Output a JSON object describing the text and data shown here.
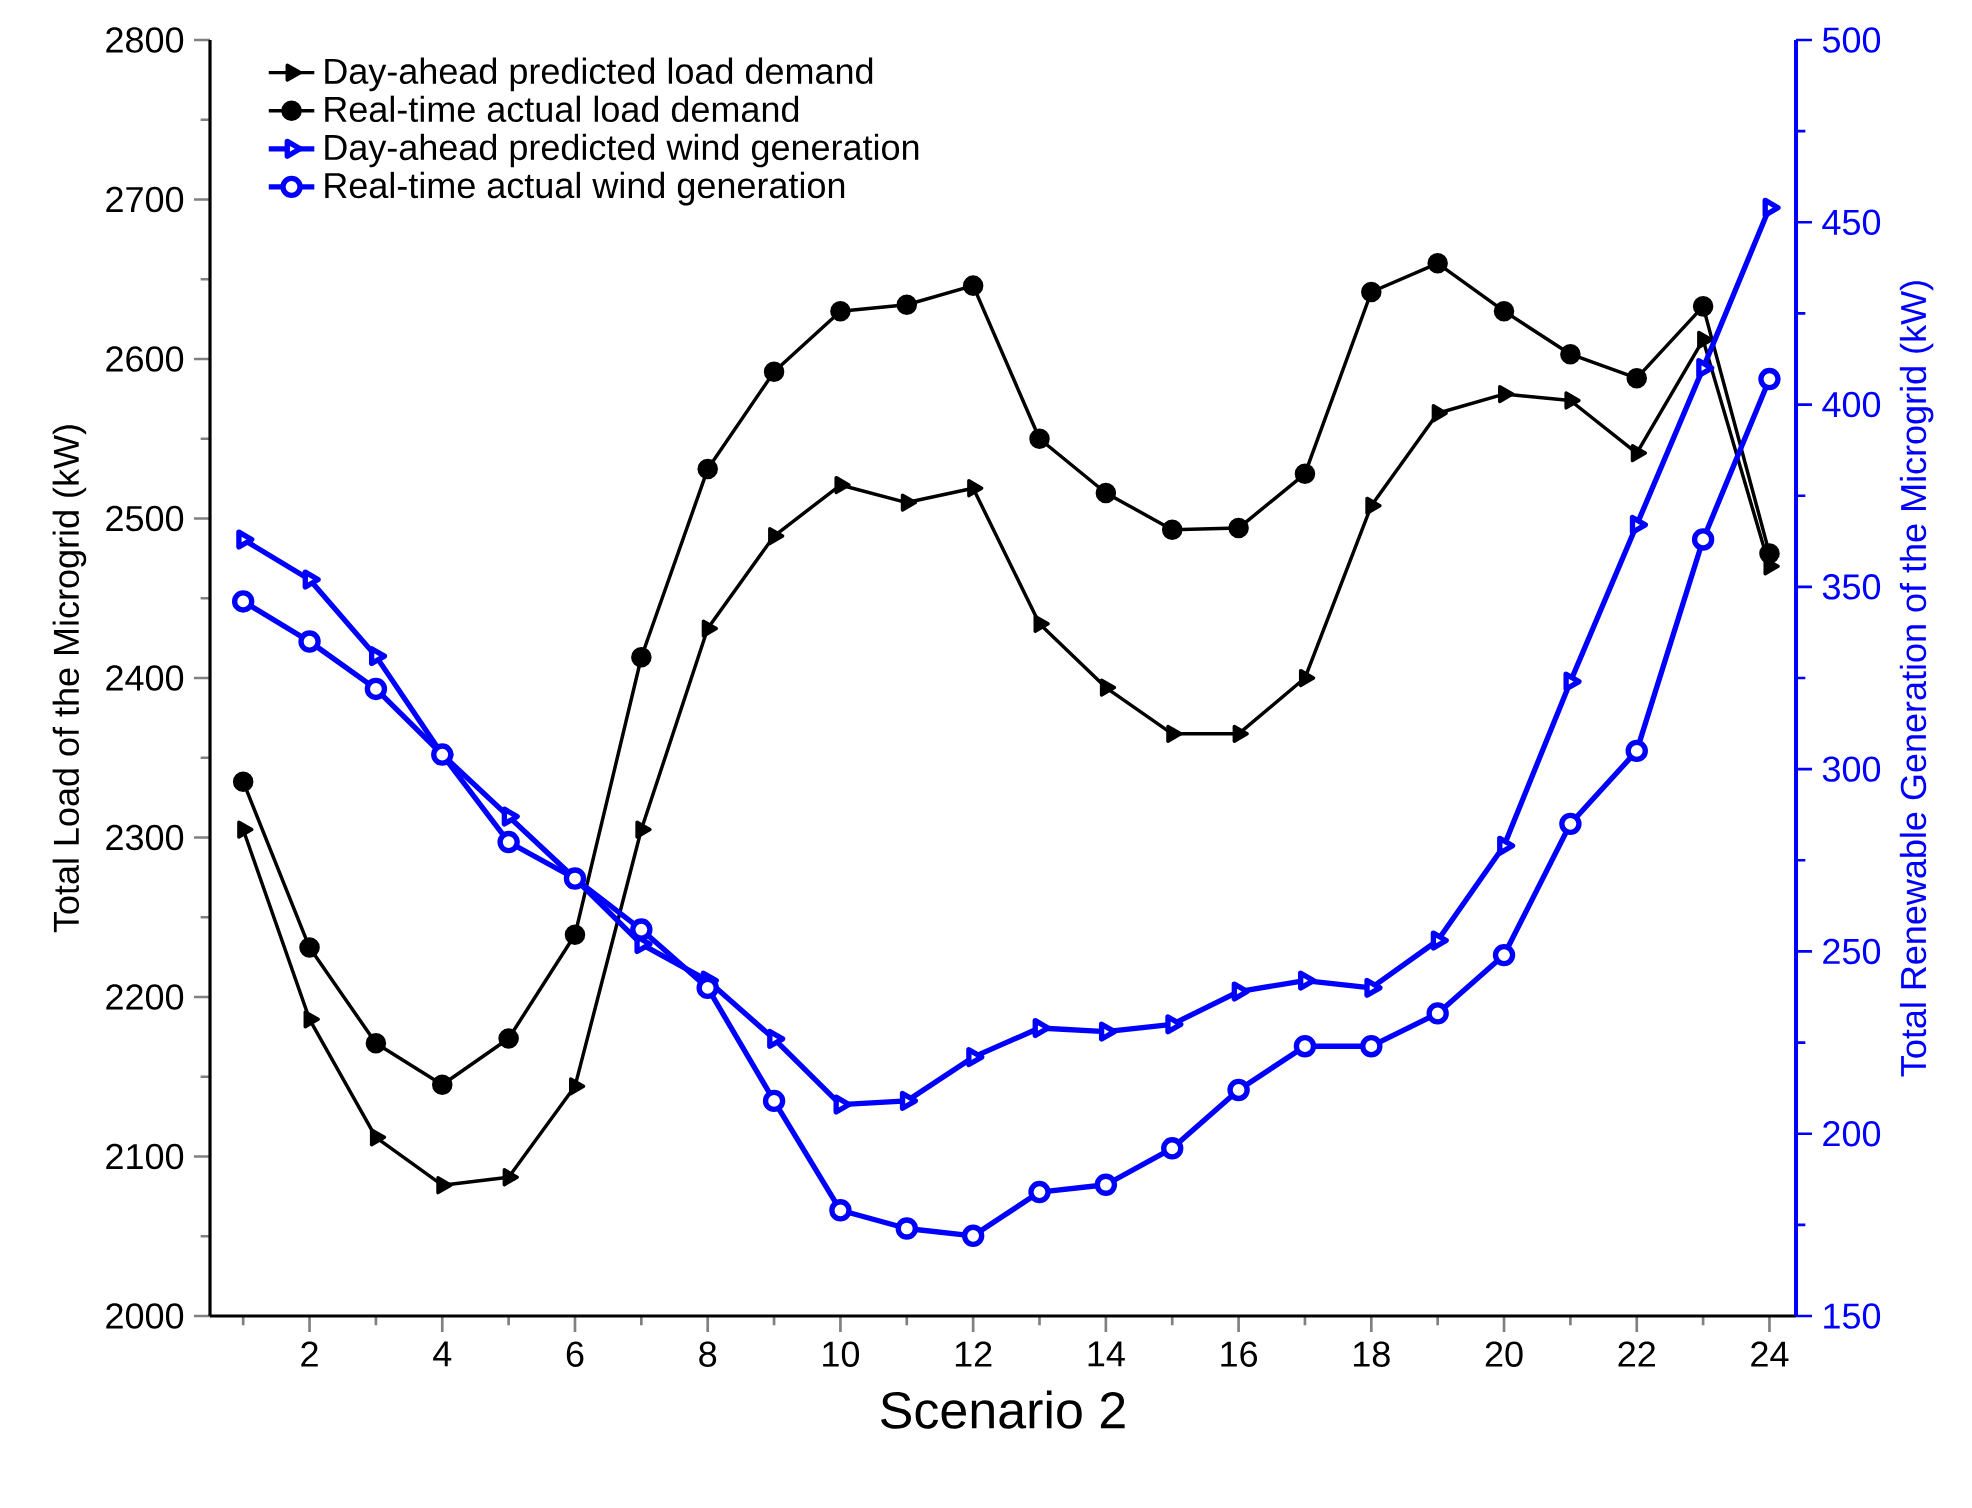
{
  "chart_data": {
    "type": "line",
    "xlabel": "Scenario 2",
    "ylabel": "Total Load of the Microgrid (kW)",
    "y2label": "Total Renewable Generation of the Microgrid (kW)",
    "x": [
      1,
      2,
      3,
      4,
      5,
      6,
      7,
      8,
      9,
      10,
      11,
      12,
      13,
      14,
      15,
      16,
      17,
      18,
      19,
      20,
      21,
      22,
      23,
      24
    ],
    "xlim": [
      0.5,
      24.4
    ],
    "xticks": [
      {
        "value": 1,
        "label": null
      },
      2,
      {
        "value": 3,
        "label": null
      },
      4,
      {
        "value": 5,
        "label": null
      },
      6,
      {
        "value": 7,
        "label": null
      },
      8,
      {
        "value": 9,
        "label": null
      },
      10,
      {
        "value": 11,
        "label": null
      },
      12,
      {
        "value": 13,
        "label": null
      },
      14,
      {
        "value": 15,
        "label": null
      },
      16,
      {
        "value": 17,
        "label": null
      },
      18,
      {
        "value": 19,
        "label": null
      },
      20,
      {
        "value": 21,
        "label": null
      },
      22,
      {
        "value": 23,
        "label": null
      },
      24
    ],
    "ylim": [
      2000,
      2800
    ],
    "yticks": [
      2000,
      2100,
      2200,
      2300,
      2400,
      2500,
      2600,
      2700,
      2800
    ],
    "y2lim": [
      150,
      500
    ],
    "y2ticks": [
      150,
      200,
      250,
      300,
      350,
      400,
      450,
      500
    ],
    "grid": false,
    "legend": "top left",
    "line_style": "solid",
    "series": [
      {
        "name": "Day-ahead predicted load demand",
        "color": "#000000",
        "marker": "triangle",
        "values": [
          2305,
          2186,
          2112,
          2082,
          2087,
          2144,
          2305,
          2431,
          2489,
          2521,
          2510,
          2519,
          2434,
          2394,
          2365,
          2365,
          2400,
          2508,
          2566,
          2578,
          2574,
          2541,
          2612,
          2470
        ]
      },
      {
        "name": "Real-time actual load demand",
        "color": "#000000",
        "marker": "circle",
        "values": [
          2335,
          2231,
          2171,
          2145,
          2174,
          2239,
          2413,
          2531,
          2592,
          2630,
          2634,
          2646,
          2550,
          2516,
          2493,
          2494,
          2528,
          2642,
          2660,
          2630,
          2603,
          2588,
          2633,
          2478
        ]
      },
      {
        "name": "Day-ahead predicted wind generation",
        "color": "#0000ff",
        "marker": "triangle",
        "axis": "y2",
        "values": [
          363,
          352,
          331,
          304,
          287,
          270,
          252,
          242,
          226,
          208,
          209,
          221,
          229,
          228,
          230,
          239,
          242,
          240,
          253,
          279,
          324,
          367,
          410,
          454
        ]
      },
      {
        "name": "Real-time actual wind generation",
        "color": "#0000ff",
        "marker": "circle",
        "axis": "y2",
        "values": [
          346,
          335,
          322,
          304,
          280,
          270,
          256,
          240,
          209,
          179,
          174,
          172,
          184,
          186,
          196,
          212,
          224,
          224,
          233,
          249,
          285,
          305,
          363,
          407
        ]
      }
    ]
  }
}
